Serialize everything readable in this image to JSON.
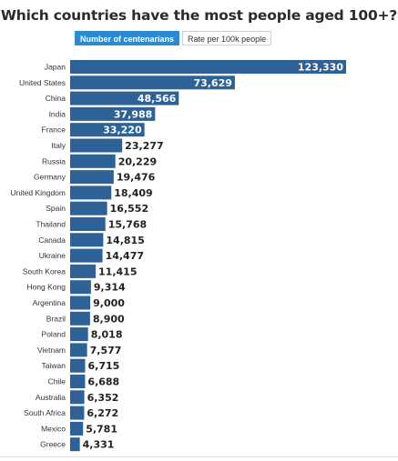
{
  "title": "Which countries have the most people aged 100+?",
  "toggle": {
    "active_label": "Number of centenarians",
    "inactive_label": "Rate per 100k people"
  },
  "colors": {
    "bar": "#2e6296",
    "active_tab": "#2c8ad2"
  },
  "chart_data": {
    "type": "bar",
    "orientation": "horizontal",
    "title": "Which countries have the most people aged 100+?",
    "categories": [
      "Japan",
      "United States",
      "China",
      "India",
      "France",
      "Italy",
      "Russia",
      "Germany",
      "United Kingdom",
      "Spain",
      "Thailand",
      "Canada",
      "Ukraine",
      "South Korea",
      "Hong Kong",
      "Argentina",
      "Brazil",
      "Poland",
      "Vietnam",
      "Taiwan",
      "Chile",
      "Australia",
      "South Africa",
      "Mexico",
      "Greece"
    ],
    "values": [
      123330,
      73629,
      48566,
      37988,
      33220,
      23277,
      20229,
      19476,
      18409,
      16552,
      15768,
      14815,
      14477,
      11415,
      9314,
      9000,
      8900,
      8018,
      7577,
      6715,
      6688,
      6352,
      6272,
      5781,
      4331
    ],
    "value_labels": [
      "123,330",
      "73,629",
      "48,566",
      "37,988",
      "33,220",
      "23,277",
      "20,229",
      "19,476",
      "18,409",
      "16,552",
      "15,768",
      "14,815",
      "14,477",
      "11,415",
      "9,314",
      "9,000",
      "8,900",
      "8,018",
      "7,577",
      "6,715",
      "6,688",
      "6,352",
      "6,272",
      "5,781",
      "4,331"
    ],
    "grid": false,
    "legend": "none"
  }
}
